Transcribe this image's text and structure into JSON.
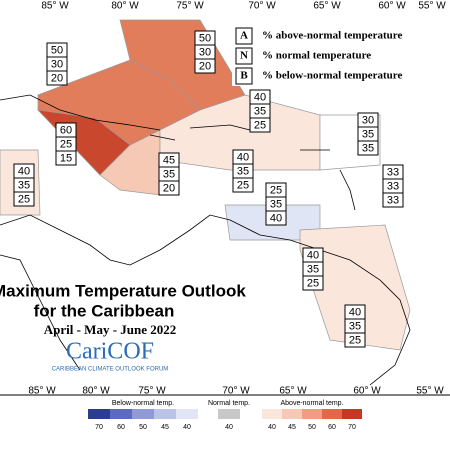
{
  "axes": {
    "top": [
      "85° W",
      "80° W",
      "75° W",
      "70° W",
      "65° W",
      "60° W",
      "55° W"
    ],
    "bottom": [
      "85° W",
      "80° W",
      "75° W",
      "70° W",
      "65° W",
      "60° W",
      "55° W"
    ]
  },
  "legend": [
    {
      "key": "A",
      "label": "% above-normal temperature"
    },
    {
      "key": "N",
      "label": "% normal temperature"
    },
    {
      "key": "B",
      "label": "% below-normal temperature"
    }
  ],
  "regions": [
    [
      50,
      30,
      20
    ],
    [
      50,
      30,
      20
    ],
    [
      40,
      35,
      25
    ],
    [
      30,
      35,
      35
    ],
    [
      60,
      25,
      15
    ],
    [
      45,
      35,
      20
    ],
    [
      40,
      35,
      25
    ],
    [
      40,
      35,
      25
    ],
    [
      33,
      33,
      33
    ],
    [
      25,
      35,
      40
    ],
    [
      40,
      35,
      25
    ],
    [
      40,
      35,
      25
    ]
  ],
  "title": {
    "line1": "Maximum Temperature Outlook",
    "line2": "for the Caribbean",
    "period": "April - May - June 2022",
    "logo": "CariCOF",
    "logo_sub": "CARIBBEAN CLIMATE OUTLOOK FORUM"
  },
  "colorbar": {
    "below": {
      "label": "Below-normal temp.",
      "ticks": [
        70,
        60,
        50,
        45,
        40
      ]
    },
    "normal": {
      "label": "Normal temp.",
      "ticks": [
        40
      ]
    },
    "above": {
      "label": "Above-normal temp.",
      "ticks": [
        40,
        45,
        50,
        60,
        70
      ]
    }
  }
}
